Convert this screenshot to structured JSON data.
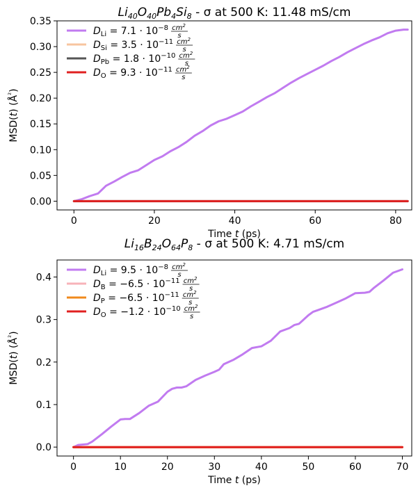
{
  "chart_data": [
    {
      "type": "line",
      "title": {
        "c1": "Li",
        "s1": "40",
        "c2": "O",
        "s2": "40",
        "c3": "Pb",
        "s3": "4",
        "c4": "Si",
        "s4": "8",
        "rest": " - σ at 500 K: 11.48 mS/cm"
      },
      "xlabel": "Time t (ps)",
      "ylabel": "MSD(t) (Å²)",
      "xlim": [
        -4.2,
        84
      ],
      "ylim": [
        -0.017,
        0.35
      ],
      "xticks": [
        0,
        20,
        40,
        60,
        80
      ],
      "yticks": [
        0.0,
        0.05,
        0.1,
        0.15,
        0.2,
        0.25,
        0.3,
        0.35
      ],
      "ytick_decimals": 2,
      "legend_placement": "top-left",
      "series": [
        {
          "name": "D_Li = 7.1·10^-8 cm²/s",
          "sym": "Li",
          "value": "7.1 · 10",
          "exp": "−8",
          "num": "cm²",
          "den": "s",
          "color": "#c17bf0",
          "x": [
            0,
            2,
            4,
            6,
            8,
            10,
            12,
            14,
            16,
            18,
            20,
            22,
            24,
            26,
            28,
            30,
            32,
            34,
            36,
            38,
            40,
            42,
            44,
            46,
            48,
            50,
            52,
            54,
            56,
            58,
            60,
            62,
            64,
            66,
            68,
            70,
            72,
            74,
            76,
            78,
            80,
            82,
            83
          ],
          "y": [
            0.0,
            0.004,
            0.01,
            0.015,
            0.03,
            0.038,
            0.047,
            0.055,
            0.06,
            0.07,
            0.08,
            0.087,
            0.097,
            0.105,
            0.115,
            0.127,
            0.136,
            0.147,
            0.155,
            0.16,
            0.167,
            0.174,
            0.184,
            0.193,
            0.202,
            0.21,
            0.22,
            0.23,
            0.239,
            0.247,
            0.255,
            0.263,
            0.272,
            0.28,
            0.289,
            0.297,
            0.305,
            0.312,
            0.318,
            0.326,
            0.331,
            0.333,
            0.333
          ]
        },
        {
          "name": "D_Si = 3.5·10^-11 cm²/s",
          "sym": "Si",
          "value": "3.5 · 10",
          "exp": "−11",
          "num": "cm²",
          "den": "s",
          "color": "#f7c59f",
          "x": [
            0,
            20,
            40,
            60,
            83
          ],
          "y": [
            0.0,
            0.0,
            0.0,
            0.0,
            0.0
          ]
        },
        {
          "name": "D_Pb = 1.8·10^-10 cm²/s",
          "sym": "Pb",
          "value": "1.8 · 10",
          "exp": "−10",
          "num": "cm²",
          "den": "s",
          "color": "#555555",
          "x": [
            0,
            20,
            40,
            60,
            83
          ],
          "y": [
            0.0,
            0.0,
            0.0,
            0.0,
            0.0
          ]
        },
        {
          "name": "D_O = 9.3·10^-11 cm²/s",
          "sym": "O",
          "value": "9.3 · 10",
          "exp": "−11",
          "num": "cm²",
          "den": "s",
          "color": "#e02020",
          "x": [
            0,
            10,
            20,
            30,
            40,
            50,
            60,
            70,
            83
          ],
          "y": [
            0.0,
            0.0,
            0.0,
            0.0,
            0.0,
            0.0,
            0.0,
            0.0,
            0.0
          ]
        }
      ]
    },
    {
      "type": "line",
      "title": {
        "c1": "Li",
        "s1": "16",
        "c2": "B",
        "s2": "24",
        "c3": "O",
        "s3": "64",
        "c4": "P",
        "s4": "8",
        "rest": " - σ at 500 K: 4.71 mS/cm"
      },
      "xlabel": "Time t (ps)",
      "ylabel": "MSD(t) (Å²)",
      "xlim": [
        -3.5,
        72
      ],
      "ylim": [
        -0.021,
        0.44
      ],
      "xticks": [
        0,
        10,
        20,
        30,
        40,
        50,
        60,
        70
      ],
      "yticks": [
        0.0,
        0.1,
        0.2,
        0.3,
        0.4
      ],
      "ytick_decimals": 1,
      "legend_placement": "top-left",
      "series": [
        {
          "name": "D_Li = 9.5·10^-8 cm²/s",
          "sym": "Li",
          "value": "9.5 · 10",
          "exp": "−8",
          "num": "cm²",
          "den": "s",
          "color": "#c17bf0",
          "x": [
            0,
            1,
            2,
            3,
            4,
            6,
            8,
            10,
            11,
            12,
            14,
            16,
            18,
            20,
            21,
            22,
            23,
            24,
            26,
            28,
            30,
            31,
            32,
            34,
            36,
            38,
            40,
            42,
            44,
            46,
            47,
            48,
            50,
            51,
            52,
            54,
            56,
            58,
            60,
            62,
            63,
            64,
            66,
            68,
            70
          ],
          "y": [
            0.0,
            0.005,
            0.006,
            0.007,
            0.013,
            0.03,
            0.048,
            0.065,
            0.066,
            0.066,
            0.08,
            0.097,
            0.107,
            0.13,
            0.137,
            0.14,
            0.14,
            0.143,
            0.158,
            0.168,
            0.177,
            0.182,
            0.195,
            0.205,
            0.218,
            0.233,
            0.237,
            0.25,
            0.272,
            0.28,
            0.287,
            0.29,
            0.31,
            0.318,
            0.322,
            0.33,
            0.34,
            0.35,
            0.362,
            0.363,
            0.365,
            0.375,
            0.392,
            0.41,
            0.418
          ]
        },
        {
          "name": "D_B = −6.5·10^-11 cm²/s",
          "sym": "B",
          "value": "−6.5 · 10",
          "exp": "−11",
          "num": "cm²",
          "den": "s",
          "color": "#f7b3b9",
          "x": [
            0,
            35,
            70
          ],
          "y": [
            0.0,
            0.0,
            0.0
          ]
        },
        {
          "name": "D_P = −6.5·10^-11 cm²/s",
          "sym": "P",
          "value": "−6.5 · 10",
          "exp": "−11",
          "num": "cm²",
          "den": "s",
          "color": "#f08a1c",
          "x": [
            0,
            35,
            70
          ],
          "y": [
            0.0,
            0.0,
            0.0
          ]
        },
        {
          "name": "D_O = −1.2·10^-10 cm²/s",
          "sym": "O",
          "value": "−1.2 · 10",
          "exp": "−10",
          "num": "cm²",
          "den": "s",
          "color": "#e02020",
          "x": [
            0,
            35,
            70
          ],
          "y": [
            0.0,
            0.0,
            0.0
          ]
        }
      ]
    }
  ]
}
